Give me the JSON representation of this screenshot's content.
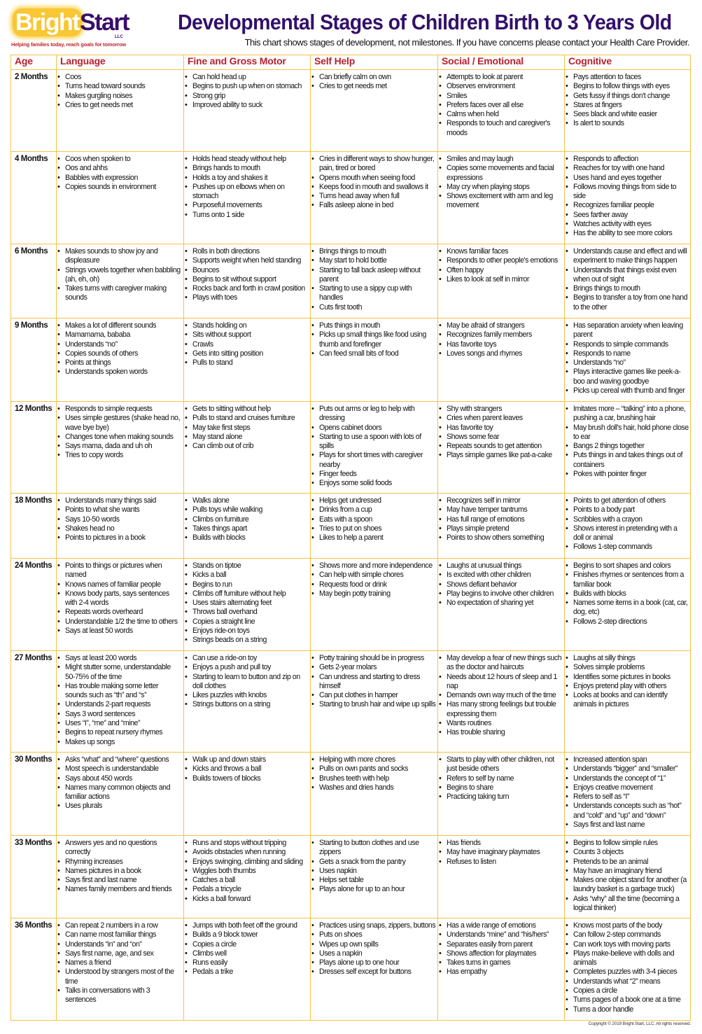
{
  "logo": {
    "word1": "Bright",
    "word2": "Start",
    "suffix": "LLC",
    "tagline": "Helping families today, reach goals for tomorrow"
  },
  "title": "Developmental Stages of Children Birth to 3 Years Old",
  "subtitle": "This chart shows stages of development, not milestones. If you have concerns please contact your Health Care Provider.",
  "colors": {
    "title": "#33106b",
    "header_text": "#b8202e",
    "border": "#f5c244",
    "logo_yellow": "#f9c634"
  },
  "columns": [
    "Age",
    "Language",
    "Fine and Gross Motor",
    "Self Help",
    "Social / Emotional",
    "Cognitive"
  ],
  "rows": [
    {
      "age": "2 Months",
      "cells": [
        [
          "Coos",
          "Turns head toward sounds",
          "Makes gurgling noises",
          "Cries to get needs met"
        ],
        [
          "Can hold head up",
          "Begins to push up when on stomach",
          "Strong grip",
          "Improved ability to suck"
        ],
        [
          "Can briefly calm on own",
          "Cries to get needs met"
        ],
        [
          "Attempts to look at parent",
          "Observes environment",
          "Smiles",
          "Prefers faces over all else",
          "Calms when held",
          "Responds to touch and caregiver's moods"
        ],
        [
          "Pays attention to faces",
          "Begins to follow things with eyes",
          "Gets fussy if things don't change",
          "Stares at fingers",
          "Sees black and white easier",
          "Is alert to sounds"
        ]
      ]
    },
    {
      "age": "4 Months",
      "cells": [
        [
          "Coos when spoken to",
          "Oos and ahhs",
          "Babbles with expression",
          "Copies sounds in environment"
        ],
        [
          "Holds head steady without help",
          "Brings hands to mouth",
          "Holds a toy and shakes it",
          "Pushes up on elbows when on stomach",
          "Purposeful movements",
          "Turns onto 1 side"
        ],
        [
          "Cries in different ways to show hunger, pain, tired or bored",
          "Opens mouth when seeing food",
          "Keeps food in mouth and swallows it",
          "Turns head away when full",
          "Falls asleep alone in bed"
        ],
        [
          "Smiles and may laugh",
          "Copies some movements and facial expressions",
          "May cry when playing stops",
          "Shows excitement with arm and leg movement"
        ],
        [
          "Responds to affection",
          "Reaches for toy with one hand",
          "Uses hand and eyes together",
          "Follows moving things from side to side",
          "Recognizes familiar people",
          "Sees farther away",
          "Watches activity with eyes",
          "Has the ability to see more colors"
        ]
      ]
    },
    {
      "age": "6 Months",
      "cells": [
        [
          "Makes sounds to show joy and displeasure",
          "Strings vowels together when babbling (ah, eh, oh)",
          "Takes turns with caregiver making sounds"
        ],
        [
          "Rolls in both directions",
          "Supports weight when held standing",
          "Bounces",
          "Begins to sit without support",
          "Rocks back and forth in crawl position",
          "Plays with toes"
        ],
        [
          "Brings things to mouth",
          "May start to hold bottle",
          "Starting to fall back asleep without parent",
          "Starting to use a sippy cup with handles",
          "Cuts first tooth"
        ],
        [
          "Knows familiar faces",
          "Responds to other people's emotions",
          "Often happy",
          "Likes to look at self in mirror"
        ],
        [
          "Understands cause and effect and will experiment to make things happen",
          "Understands that things exist even when out of sight",
          "Brings things to mouth",
          "Begins to transfer a toy from one hand to the other"
        ]
      ]
    },
    {
      "age": "9 Months",
      "cells": [
        [
          "Makes a lot of different sounds",
          "Mamamama, bababa",
          "Understands “no”",
          "Copies sounds of others",
          "Points at things",
          "Understands spoken words"
        ],
        [
          "Stands holding on",
          "Sits without support",
          "Crawls",
          "Gets into sitting position",
          "Pulls to stand"
        ],
        [
          "Puts things in mouth",
          "Picks up small things like food using thumb and forefinger",
          "Can feed small bits of food"
        ],
        [
          "May be afraid of strangers",
          "Recognizes family members",
          "Has favorite toys",
          "Loves songs and rhymes"
        ],
        [
          "Has separation anxiety when leaving parent",
          "Responds to simple commands",
          "Responds to name",
          "Understands “no”",
          "Plays interactive games like peek-a-boo and waving goodbye",
          "Picks up cereal with thumb and finger"
        ]
      ]
    },
    {
      "age": "12 Months",
      "cells": [
        [
          "Responds to simple requests",
          "Uses simple gestures (shake head no, wave bye bye)",
          "Changes tone when making sounds",
          "Says mama, dada and uh oh",
          "Tries to copy words"
        ],
        [
          "Gets to sitting without help",
          "Pulls to stand and cruises furniture",
          "May take first steps",
          "May stand alone",
          "Can climb out of crib"
        ],
        [
          "Puts out arms or leg to help with dressing",
          "Opens cabinet doors",
          "Starting to use a spoon with lots of spills",
          "Plays for short times with caregiver nearby",
          "Finger feeds",
          "Enjoys some solid foods"
        ],
        [
          "Shy with strangers",
          "Cries when parent leaves",
          "Has favorite toy",
          "Shows some fear",
          "Repeats sounds to get attention",
          "Plays simple games like pat-a-cake"
        ],
        [
          "Imitates more – “talking” into a phone, pushing a car, brushing hair",
          "May brush doll's hair, hold phone close to ear",
          "Bangs 2 things together",
          "Puts things in and takes things out of containers",
          "Pokes with pointer finger"
        ]
      ]
    },
    {
      "age": "18 Months",
      "cells": [
        [
          "Understands many things said",
          "Points to what she wants",
          "Says 10-50 words",
          "Shakes head no",
          "Points to pictures in a book"
        ],
        [
          "Walks alone",
          "Pulls toys while walking",
          "Climbs on furniture",
          "Takes things apart",
          "Builds with blocks"
        ],
        [
          "Helps get undressed",
          "Drinks from a cup",
          "Eats with a spoon",
          "Tries to put on shoes",
          "Likes to help a parent"
        ],
        [
          "Recognizes self in mirror",
          "May have temper tantrums",
          "Has full range of emotions",
          "Plays simple pretend",
          "Points to show others something"
        ],
        [
          "Points to get attention of others",
          "Points to a body part",
          "Scribbles with a crayon",
          "Shows interest in pretending with a doll or animal",
          "Follows 1-step commands"
        ]
      ]
    },
    {
      "age": "24 Months",
      "cells": [
        [
          "Points to things or pictures when named",
          "Knows names of familiar people",
          "Knows body parts, says sentences with 2-4 words",
          "Repeats words overheard",
          "Understandable 1/2 the time to others",
          "Says at least 50 words"
        ],
        [
          "Stands on tiptoe",
          "Kicks a ball",
          "Begins to run",
          "Climbs off furniture without help",
          "Uses stairs alternating feet",
          "Throws ball overhand",
          "Copies a straight line",
          "Enjoys ride-on toys",
          "Strings beads on a string"
        ],
        [
          "Shows more and more independence",
          "Can help with simple chores",
          "Requests food or drink",
          "May begin potty training"
        ],
        [
          "Laughs at unusual things",
          "Is excited with other children",
          "Shows defiant behavior",
          "Play begins to involve other children",
          "No expectation of sharing yet"
        ],
        [
          "Begins to sort shapes and colors",
          "Finishes rhymes or sentences from a familiar book",
          "Builds with blocks",
          "Names some items in a book (cat, car, dog, etc)",
          "Follows 2-step directions"
        ]
      ]
    },
    {
      "age": "27 Months",
      "cells": [
        [
          "Says at least 200 words",
          "Might stutter some, understandable 50-75% of the time",
          "Has trouble making some letter sounds such as “th” and “s”",
          "Understands 2-part requests",
          "Says 3 word sentences",
          "Uses “I”, “me” and “mine”",
          "Begins to repeat nursery rhymes",
          "Makes up songs"
        ],
        [
          "Can use a ride-on toy",
          "Enjoys a push and pull toy",
          "Starting to learn to button and zip on doll clothes",
          "Likes puzzles with knobs",
          "Strings buttons on a string"
        ],
        [
          "Potty training should be in progress",
          "Gets 2-year molars",
          "Can undress and starting to dress himself",
          "Can put clothes in hamper",
          "Starting to brush hair and wipe up spills"
        ],
        [
          "May develop a fear of new things such as the doctor and haircuts",
          "Needs about 12 hours of sleep and 1 nap",
          "Demands own way much of the time",
          "Has many strong feelings but trouble expressing them",
          "Wants routines",
          "Has trouble sharing"
        ],
        [
          "Laughs at silly things",
          "Solves simple problems",
          "Identifies some pictures in books",
          "Enjoys pretend play with others",
          "Looks at books and can identify animals in pictures"
        ]
      ]
    },
    {
      "age": "30 Months",
      "cells": [
        [
          "Asks “what” and “where” questions",
          "Most speech is understandable",
          "Says about 450 words",
          "Names many common objects and familiar actions",
          "Uses plurals"
        ],
        [
          "Walk up and down stairs",
          "Kicks and throws a ball",
          "Builds towers of blocks"
        ],
        [
          "Helping with more chores",
          "Pulls on own pants and socks",
          "Brushes teeth with help",
          "Washes and dries hands"
        ],
        [
          "Starts to play with other children, not just beside others",
          "Refers to self by name",
          "Begins to share",
          "Practicing taking turn"
        ],
        [
          "Increased attention span",
          "Understands “bigger” and “smaller”",
          "Understands the concept of “1”",
          "Enjoys creative movement",
          "Refers to self as “I”",
          "Understands concepts such as “hot” and “cold” and “up” and “down”",
          "Says first and last name"
        ]
      ]
    },
    {
      "age": "33 Months",
      "cells": [
        [
          "Answers yes and no questions correctly",
          "Rhyming increases",
          "Names pictures in a book",
          "Says first and last name",
          "Names family members and friends"
        ],
        [
          "Runs and stops without tripping",
          "Avoids obstacles when running",
          "Enjoys swinging, climbing and sliding",
          "Wiggles both thumbs",
          "Catches a ball",
          "Pedals a tricycle",
          "Kicks a ball forward"
        ],
        [
          "Starting to button clothes and use zippers",
          "Gets a snack from the pantry",
          "Uses napkin",
          "Helps set table",
          "Plays alone for up to an hour"
        ],
        [
          "Has friends",
          "May have imaginary playmates",
          "Refuses to listen"
        ],
        [
          "Begins to follow simple rules",
          "Counts 3 objects",
          "Pretends to be an animal",
          "May have an imaginary friend",
          "Makes one object stand for another (a laundry basket is a garbage truck)",
          "Asks “why” all the time (becoming a logical thinker)"
        ]
      ]
    },
    {
      "age": "36 Months",
      "cells": [
        [
          "Can repeat 2 numbers in a row",
          "Can name most familiar things",
          "Understands “in” and “on”",
          "Says first name, age, and sex",
          "Names a friend",
          "Understood by strangers most of the time",
          "Talks in conversations with 3 sentences"
        ],
        [
          "Jumps with both feet off the ground",
          "Builds a 9 block tower",
          "Copies a circle",
          "Climbs well",
          "Runs easily",
          "Pedals a trike"
        ],
        [
          "Practices using snaps, zippers, buttons",
          "Puts on shoes",
          "Wipes up own spills",
          "Uses a napkin",
          "Plays alone up to one hour",
          "Dresses self except for buttons"
        ],
        [
          "Has a wide range of emotions",
          "Understands “mine” and “his/hers”",
          "Separates easily from parent",
          "Shows affection for playmates",
          "Takes turns in games",
          "Has empathy"
        ],
        [
          "Knows most parts of the body",
          "Can follow 2-step commands",
          "Can work toys with moving parts",
          "Plays make-believe with dolls and animals",
          "Completes puzzles with 3-4 pieces",
          "Understands what “2” means",
          "Copies a circle",
          "Turns pages of a book one at a time",
          "Turns a door handle"
        ]
      ]
    }
  ],
  "copyright": "Copyright © 2019 Bright Start, LLC. All rights reserved."
}
